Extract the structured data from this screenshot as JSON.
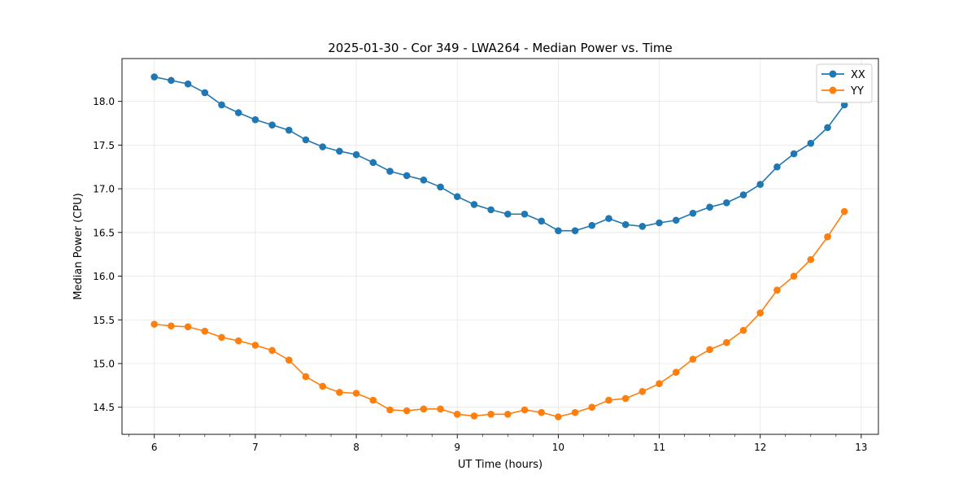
{
  "chart_data": {
    "type": "line",
    "title": "2025-01-30 - Cor 349 - LWA264 - Median Power vs. Time",
    "xlabel": "UT Time (hours)",
    "ylabel": "Median Power (CPU)",
    "xlim": [
      5.68,
      13.17
    ],
    "ylim": [
      14.19,
      18.49
    ],
    "grid": true,
    "legend_position": "top-right",
    "x_ticks": [
      6,
      7,
      8,
      9,
      10,
      11,
      12,
      13
    ],
    "x_tick_labels": [
      "6",
      "7",
      "8",
      "9",
      "10",
      "11",
      "12",
      "13"
    ],
    "x_minor_tick_step": 0.25,
    "y_ticks": [
      14.5,
      15.0,
      15.5,
      16.0,
      16.5,
      17.0,
      17.5,
      18.0
    ],
    "y_tick_labels": [
      "14.5",
      "15.0",
      "15.5",
      "16.0",
      "16.5",
      "17.0",
      "17.5",
      "18.0"
    ],
    "x": [
      6.0,
      6.1667,
      6.3333,
      6.5,
      6.6667,
      6.8333,
      7.0,
      7.1667,
      7.3333,
      7.5,
      7.6667,
      7.8333,
      8.0,
      8.1667,
      8.3333,
      8.5,
      8.6667,
      8.8333,
      9.0,
      9.1667,
      9.3333,
      9.5,
      9.6667,
      9.8333,
      10.0,
      10.1667,
      10.3333,
      10.5,
      10.6667,
      10.8333,
      11.0,
      11.1667,
      11.3333,
      11.5,
      11.6667,
      11.8333,
      12.0,
      12.1667,
      12.3333,
      12.5,
      12.6667,
      12.8333
    ],
    "series": [
      {
        "name": "XX",
        "color": "#1f77b4",
        "values": [
          18.28,
          18.24,
          18.2,
          18.1,
          17.96,
          17.87,
          17.79,
          17.73,
          17.67,
          17.56,
          17.48,
          17.43,
          17.39,
          17.3,
          17.2,
          17.15,
          17.1,
          17.02,
          16.91,
          16.82,
          16.76,
          16.71,
          16.71,
          16.63,
          16.52,
          16.52,
          16.58,
          16.66,
          16.59,
          16.57,
          16.61,
          16.64,
          16.72,
          16.79,
          16.84,
          16.93,
          17.05,
          17.25,
          17.4,
          17.52,
          17.7,
          17.96
        ]
      },
      {
        "name": "YY",
        "color": "#ff7f0e",
        "values": [
          15.45,
          15.43,
          15.42,
          15.37,
          15.3,
          15.26,
          15.21,
          15.15,
          15.04,
          14.85,
          14.74,
          14.67,
          14.66,
          14.58,
          14.47,
          14.46,
          14.48,
          14.48,
          14.42,
          14.4,
          14.42,
          14.42,
          14.47,
          14.44,
          14.39,
          14.44,
          14.5,
          14.58,
          14.6,
          14.68,
          14.77,
          14.9,
          15.05,
          15.16,
          15.24,
          15.38,
          15.58,
          15.84,
          16.0,
          16.19,
          16.45,
          16.74
        ]
      }
    ]
  }
}
